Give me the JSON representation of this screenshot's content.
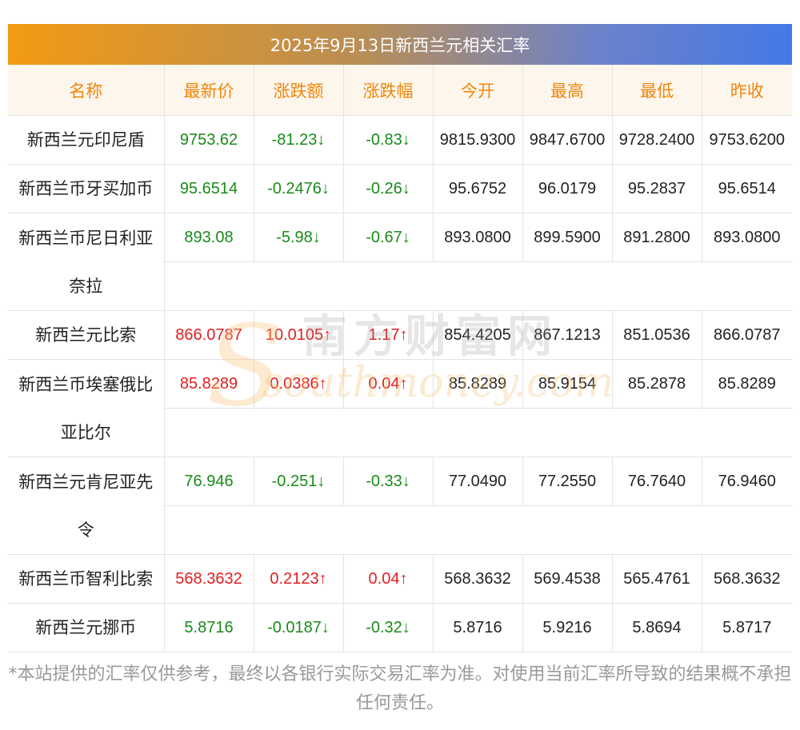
{
  "title": "2025年9月13日新西兰元相关汇率",
  "headers": [
    "名称",
    "最新价",
    "涨跌额",
    "涨跌幅",
    "今开",
    "最高",
    "最低",
    "昨收"
  ],
  "rows": [
    {
      "name": "新西兰元印尼盾",
      "latest": "9753.62",
      "change": "-81.23↓",
      "pct": "-0.83↓",
      "open": "9815.9300",
      "high": "9847.6700",
      "low": "9728.2400",
      "prev": "9753.6200"
    },
    {
      "name": "新西兰币牙买加币",
      "latest": "95.6514",
      "change": "-0.2476↓",
      "pct": "-0.26↓",
      "open": "95.6752",
      "high": "96.0179",
      "low": "95.2837",
      "prev": "95.6514"
    },
    {
      "name": "新西兰币尼日利亚",
      "name2": "奈拉",
      "latest": "893.08",
      "change": "-5.98↓",
      "pct": "-0.67↓",
      "open": "893.0800",
      "high": "899.5900",
      "low": "891.2800",
      "prev": "893.0800"
    },
    {
      "name": "新西兰元比索",
      "latest": "866.0787",
      "change": "10.0105↑",
      "pct": "1.17↑",
      "open": "854.4205",
      "high": "867.1213",
      "low": "851.0536",
      "prev": "866.0787"
    },
    {
      "name": "新西兰币埃塞俄比",
      "name2": "亚比尔",
      "latest": "85.8289",
      "change": "0.0386↑",
      "pct": "0.04↑",
      "open": "85.8289",
      "high": "85.9154",
      "low": "85.2878",
      "prev": "85.8289"
    },
    {
      "name": "新西兰元肯尼亚先",
      "name2": "令",
      "latest": "76.946",
      "change": "-0.251↓",
      "pct": "-0.33↓",
      "open": "77.0490",
      "high": "77.2550",
      "low": "76.7640",
      "prev": "76.9460"
    },
    {
      "name": "新西兰币智利比索",
      "latest": "568.3632",
      "change": "0.2123↑",
      "pct": "0.04↑",
      "open": "568.3632",
      "high": "569.4538",
      "low": "565.4761",
      "prev": "568.3632"
    },
    {
      "name": "新西兰元挪币",
      "latest": "5.8716",
      "change": "-0.0187↓",
      "pct": "-0.32↓",
      "open": "5.8716",
      "high": "5.9216",
      "low": "5.8694",
      "prev": "5.8717"
    }
  ],
  "watermark": {
    "cn": "南方财富网",
    "en": "southmoney.com"
  },
  "footer": "*本站提供的汇率仅供参考，最终以各银行实际交易汇率为准。对使用当前汇率所导致的结果概不承担任何责任。",
  "colors": {
    "up": "#e02020",
    "down": "#1a8a1a",
    "header_text": "#f0860c",
    "header_bg": "#fdf6ec",
    "banner_start": "#f39a12",
    "banner_end": "#4479e6"
  }
}
